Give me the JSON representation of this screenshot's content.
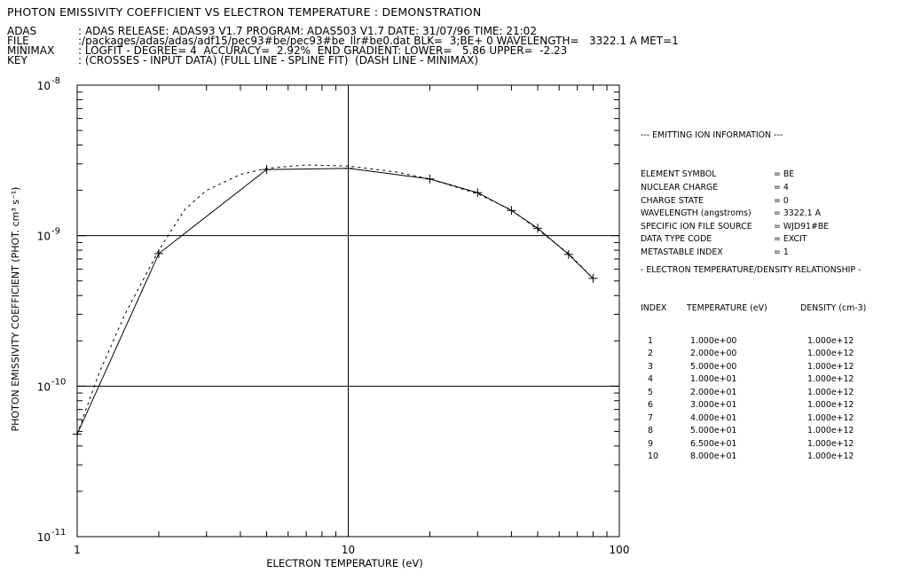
{
  "title": "PHOTON EMISSIVITY COEFFICIENT VS ELECTRON TEMPERATURE : DEMONSTRATION",
  "header": [
    {
      "key": "ADAS",
      "value": ": ADAS RELEASE: ADAS93 V1.7 PROGRAM: ADAS503 V1.7 DATE: 31/07/96 TIME: 21:02"
    },
    {
      "key": "FILE",
      "value": ":/packages/adas/adas/adf15/pec93#be/pec93#be_llr#be0.dat BLK=  3;BE+ 0 WAVELENGTH=   3322.1 A MET=1"
    },
    {
      "key": "MINIMAX",
      "value": ": LOGFIT - DEGREE= 4  ACCURACY=  2.92%  END GRADIENT: LOWER=   5.86 UPPER=  -2.23"
    },
    {
      "key": "KEY",
      "value": ": (CROSSES - INPUT DATA) (FULL LINE - SPLINE FIT)  (DASH LINE - MINIMAX)"
    }
  ],
  "ion_info": {
    "heading": "--- EMITTING ION INFORMATION ---",
    "rows": [
      {
        "label": "ELEMENT SYMBOL",
        "value": "= BE"
      },
      {
        "label": "NUCLEAR CHARGE",
        "value": "= 4"
      },
      {
        "label": "CHARGE STATE",
        "value": "= 0"
      },
      {
        "label": "WAVELENGTH (angstroms)",
        "value": "= 3322.1 A"
      },
      {
        "label": "SPECIFIC ION FILE SOURCE",
        "value": "= WJD91#BE"
      },
      {
        "label": "DATA TYPE CODE",
        "value": "= EXCIT"
      },
      {
        "label": "METASTABLE INDEX",
        "value": "= 1"
      }
    ]
  },
  "te_table": {
    "heading": "- ELECTRON TEMPERATURE/DENSITY RELATIONSHIP -",
    "columns": [
      "INDEX",
      "TEMPERATURE (eV)",
      "DENSITY (cm-3)"
    ],
    "rows": [
      [
        "1",
        "1.000e+00",
        "1.000e+12"
      ],
      [
        "2",
        "2.000e+00",
        "1.000e+12"
      ],
      [
        "3",
        "5.000e+00",
        "1.000e+12"
      ],
      [
        "4",
        "1.000e+01",
        "1.000e+12"
      ],
      [
        "5",
        "2.000e+01",
        "1.000e+12"
      ],
      [
        "6",
        "3.000e+01",
        "1.000e+12"
      ],
      [
        "7",
        "4.000e+01",
        "1.000e+12"
      ],
      [
        "8",
        "5.000e+01",
        "1.000e+12"
      ],
      [
        "9",
        "6.500e+01",
        "1.000e+12"
      ],
      [
        "10",
        "8.000e+01",
        "1.000e+12"
      ]
    ]
  },
  "chart_data": {
    "type": "line",
    "xlabel": "ELECTRON TEMPERATURE  (eV)",
    "ylabel": "PHOTON EMISSIVITY COEFFICIENT  (PHOT. cm³ s⁻¹)",
    "x_scale": "log",
    "y_scale": "log",
    "xlim": [
      1,
      100
    ],
    "ylim": [
      1e-11,
      1e-08
    ],
    "x_tick_labels": [
      "1",
      "10",
      "100"
    ],
    "y_tick_labels": [
      {
        "base": "10",
        "exp": "-11"
      },
      {
        "base": "10",
        "exp": "-10"
      },
      {
        "base": "10",
        "exp": "-9"
      },
      {
        "base": "10",
        "exp": "-8"
      }
    ],
    "grid": "major only",
    "series": [
      {
        "style": "crosses + full line",
        "x": [
          1,
          2,
          5,
          10,
          20,
          30,
          40,
          50,
          65,
          80
        ],
        "y": [
          4.8e-11,
          7.6e-10,
          2.75e-09,
          2.8e-09,
          2.38e-09,
          1.93e-09,
          1.47e-09,
          1.12e-09,
          7.5e-10,
          5.2e-10
        ]
      },
      {
        "style": "dash line",
        "x": [
          1,
          1.2,
          1.5,
          2,
          2.5,
          3,
          4,
          5,
          7,
          10,
          15,
          20,
          30,
          40,
          50,
          65,
          80
        ],
        "y": [
          4.8e-11,
          1.2e-10,
          3e-10,
          8e-10,
          1.5e-09,
          2e-09,
          2.55e-09,
          2.8e-09,
          2.95e-09,
          2.9e-09,
          2.65e-09,
          2.38e-09,
          1.9e-09,
          1.48e-09,
          1.1e-09,
          7.6e-10,
          5.2e-10
        ]
      }
    ]
  }
}
